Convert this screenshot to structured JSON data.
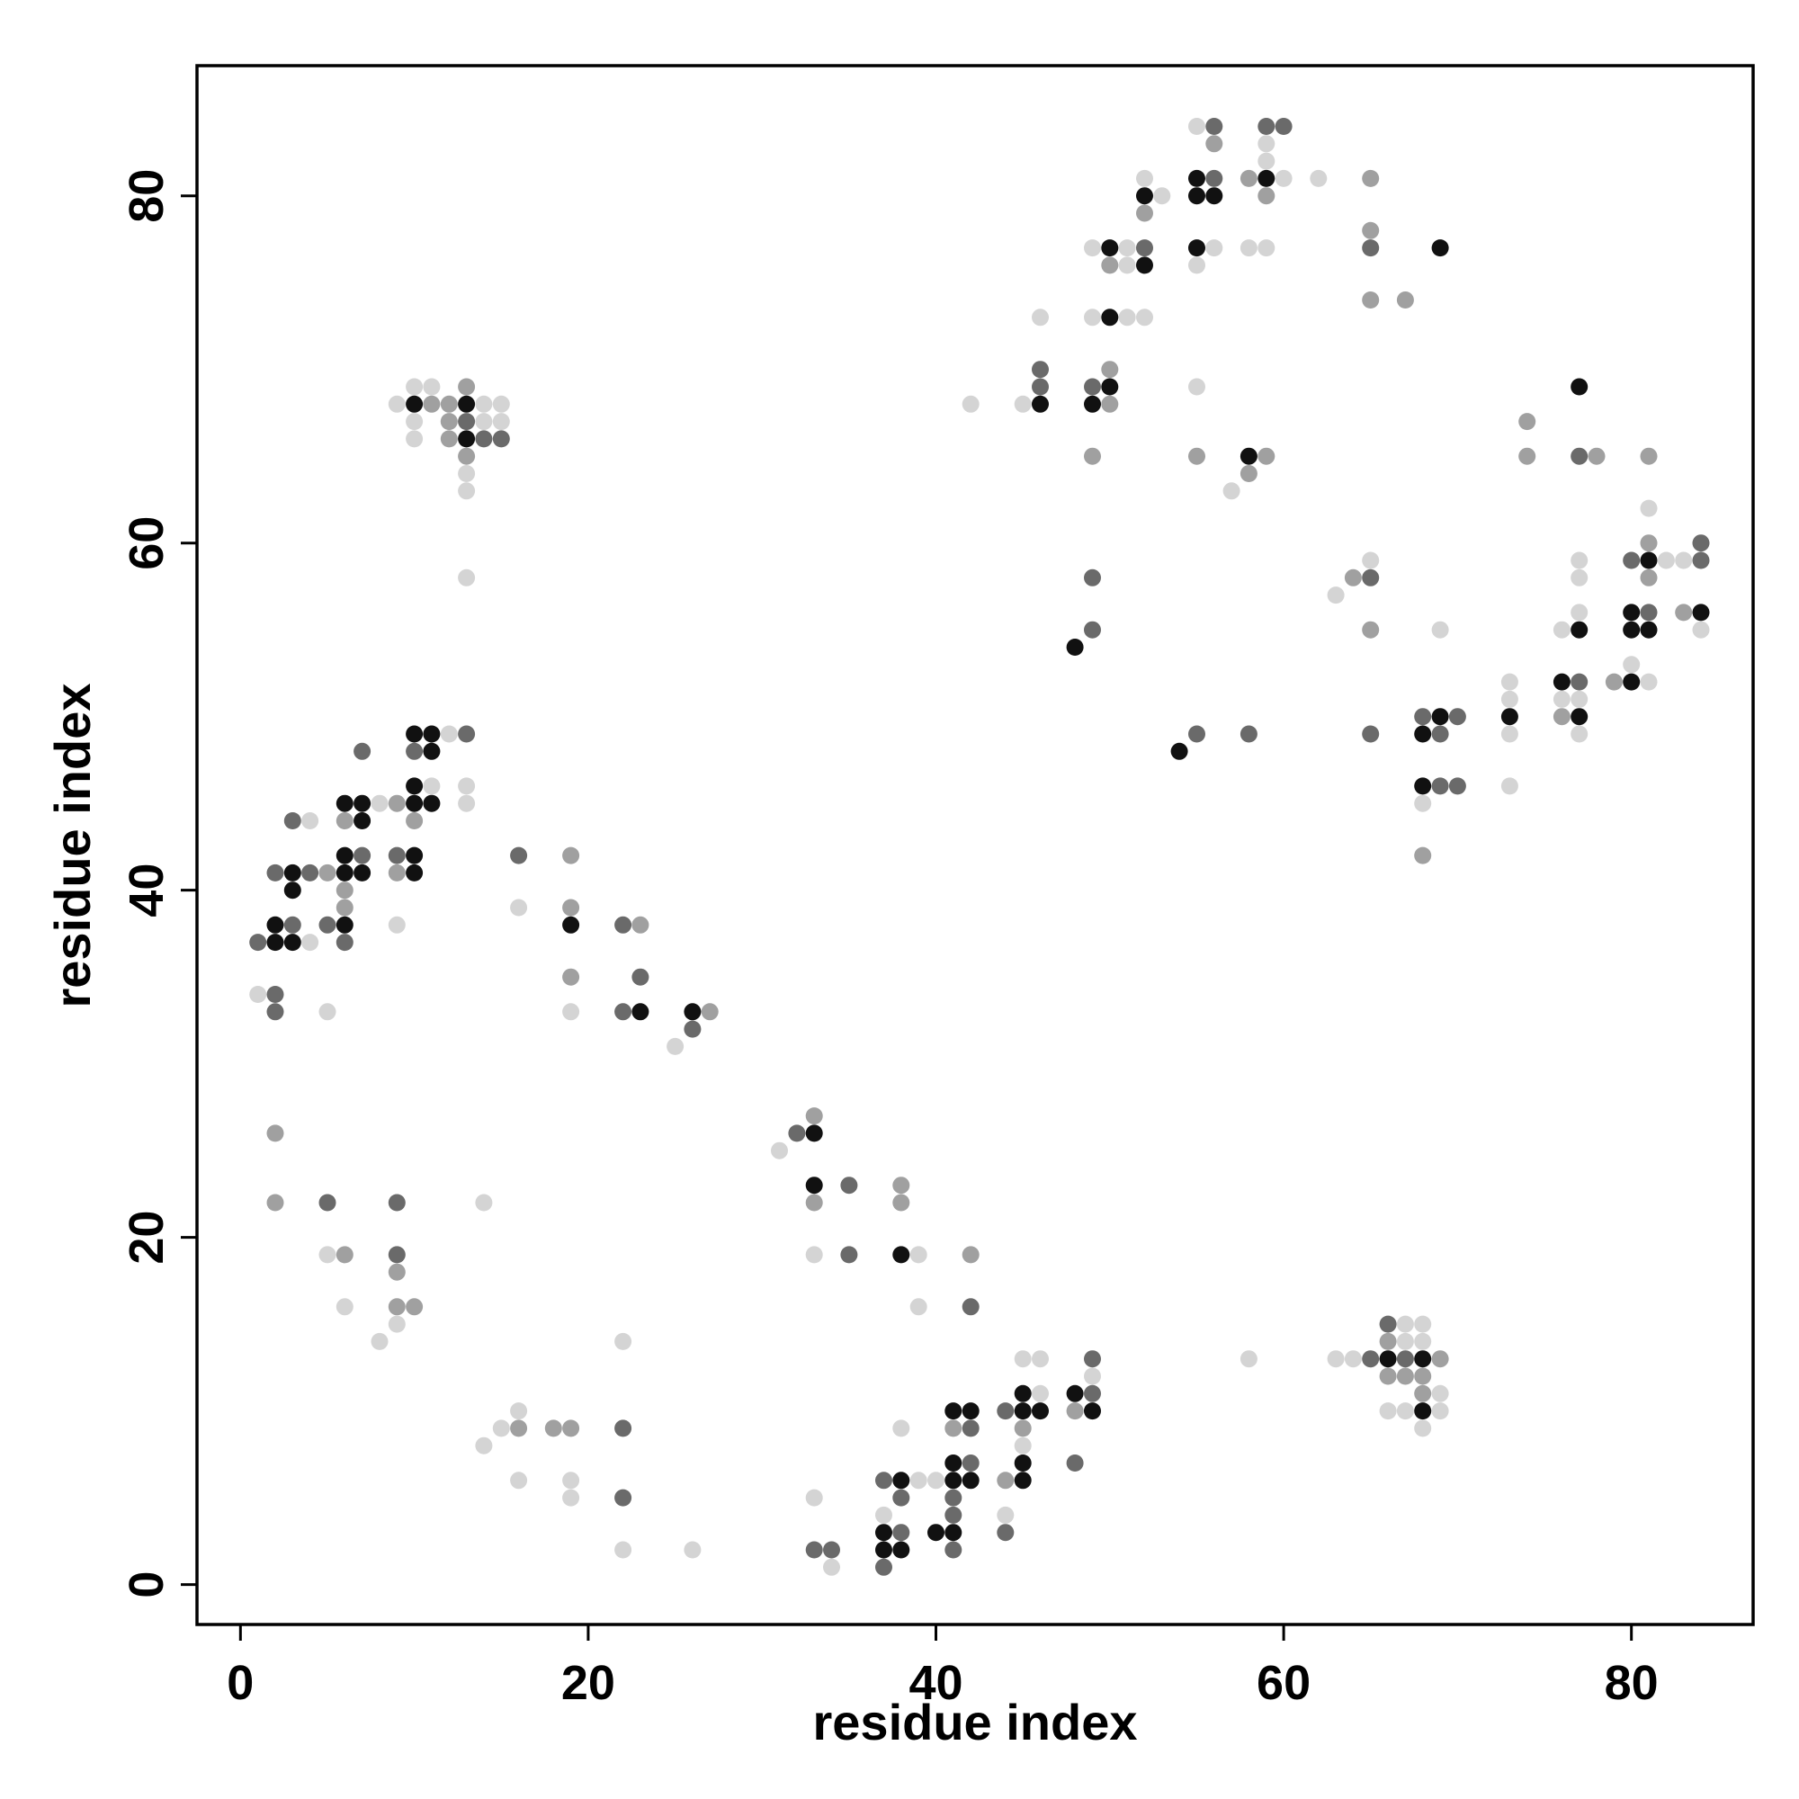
{
  "chart_data": {
    "type": "scatter",
    "title": "",
    "xlabel": "residue index",
    "ylabel": "residue index",
    "xlim": [
      -2.5,
      87
    ],
    "ylim": [
      -2.3,
      87.5
    ],
    "xticks": [
      0,
      20,
      40,
      60,
      80
    ],
    "yticks": [
      0,
      20,
      40,
      60,
      80
    ],
    "grid": false,
    "legend": "none",
    "marker_color_scale": "shade 1 = light gray, 4 = black",
    "shade_colors": [
      "#d4d4d4",
      "#a0a0a0",
      "#6a6a6a",
      "#111111"
    ],
    "points": [
      [
        1,
        37,
        3
      ],
      [
        1,
        34,
        1
      ],
      [
        2,
        38,
        4
      ],
      [
        2,
        37,
        4
      ],
      [
        2,
        34,
        3
      ],
      [
        2,
        33,
        3
      ],
      [
        2,
        41,
        3
      ],
      [
        2,
        26,
        2
      ],
      [
        2,
        22,
        2
      ],
      [
        3,
        41,
        4
      ],
      [
        3,
        40,
        4
      ],
      [
        3,
        38,
        3
      ],
      [
        3,
        37,
        4
      ],
      [
        3,
        44,
        3
      ],
      [
        4,
        44,
        1
      ],
      [
        4,
        41,
        3
      ],
      [
        4,
        37,
        1
      ],
      [
        5,
        41,
        2
      ],
      [
        5,
        38,
        3
      ],
      [
        5,
        33,
        1
      ],
      [
        5,
        22,
        3
      ],
      [
        5,
        19,
        1
      ],
      [
        6,
        45,
        4
      ],
      [
        6,
        44,
        2
      ],
      [
        6,
        42,
        4
      ],
      [
        6,
        41,
        4
      ],
      [
        6,
        40,
        2
      ],
      [
        6,
        39,
        2
      ],
      [
        6,
        38,
        4
      ],
      [
        6,
        37,
        3
      ],
      [
        6,
        19,
        2
      ],
      [
        6,
        16,
        1
      ],
      [
        7,
        48,
        3
      ],
      [
        7,
        45,
        4
      ],
      [
        7,
        44,
        4
      ],
      [
        7,
        42,
        3
      ],
      [
        7,
        41,
        4
      ],
      [
        8,
        45,
        1
      ],
      [
        8,
        14,
        1
      ],
      [
        9,
        68,
        1
      ],
      [
        9,
        45,
        2
      ],
      [
        9,
        42,
        3
      ],
      [
        9,
        41,
        2
      ],
      [
        9,
        38,
        1
      ],
      [
        9,
        22,
        3
      ],
      [
        9,
        19,
        3
      ],
      [
        9,
        18,
        2
      ],
      [
        9,
        16,
        2
      ],
      [
        9,
        15,
        1
      ],
      [
        10,
        69,
        1
      ],
      [
        10,
        68,
        4
      ],
      [
        10,
        67,
        1
      ],
      [
        10,
        66,
        1
      ],
      [
        10,
        49,
        4
      ],
      [
        10,
        48,
        3
      ],
      [
        10,
        46,
        4
      ],
      [
        10,
        45,
        4
      ],
      [
        10,
        44,
        2
      ],
      [
        10,
        42,
        4
      ],
      [
        10,
        41,
        4
      ],
      [
        10,
        16,
        2
      ],
      [
        11,
        69,
        1
      ],
      [
        11,
        68,
        2
      ],
      [
        11,
        49,
        4
      ],
      [
        11,
        48,
        4
      ],
      [
        11,
        46,
        1
      ],
      [
        11,
        45,
        4
      ],
      [
        12,
        68,
        2
      ],
      [
        12,
        67,
        2
      ],
      [
        12,
        66,
        2
      ],
      [
        12,
        49,
        1
      ],
      [
        13,
        69,
        2
      ],
      [
        13,
        68,
        4
      ],
      [
        13,
        67,
        3
      ],
      [
        13,
        66,
        4
      ],
      [
        13,
        65,
        2
      ],
      [
        13,
        64,
        1
      ],
      [
        13,
        63,
        1
      ],
      [
        13,
        58,
        1
      ],
      [
        13,
        49,
        3
      ],
      [
        13,
        46,
        1
      ],
      [
        13,
        45,
        1
      ],
      [
        14,
        68,
        1
      ],
      [
        14,
        67,
        1
      ],
      [
        14,
        66,
        3
      ],
      [
        14,
        22,
        1
      ],
      [
        14,
        8,
        1
      ],
      [
        15,
        68,
        1
      ],
      [
        15,
        67,
        1
      ],
      [
        15,
        66,
        3
      ],
      [
        15,
        9,
        1
      ],
      [
        16,
        42,
        3
      ],
      [
        16,
        39,
        1
      ],
      [
        16,
        10,
        1
      ],
      [
        16,
        9,
        2
      ],
      [
        16,
        6,
        1
      ],
      [
        18,
        9,
        2
      ],
      [
        19,
        42,
        2
      ],
      [
        19,
        39,
        2
      ],
      [
        19,
        38,
        4
      ],
      [
        19,
        35,
        2
      ],
      [
        19,
        33,
        1
      ],
      [
        19,
        9,
        2
      ],
      [
        19,
        6,
        1
      ],
      [
        19,
        5,
        1
      ],
      [
        22,
        38,
        3
      ],
      [
        22,
        33,
        3
      ],
      [
        22,
        14,
        1
      ],
      [
        22,
        9,
        3
      ],
      [
        22,
        5,
        3
      ],
      [
        22,
        2,
        1
      ],
      [
        23,
        38,
        2
      ],
      [
        23,
        35,
        3
      ],
      [
        23,
        33,
        4
      ],
      [
        25,
        31,
        1
      ],
      [
        26,
        33,
        4
      ],
      [
        26,
        32,
        3
      ],
      [
        26,
        2,
        1
      ],
      [
        27,
        33,
        2
      ],
      [
        31,
        25,
        1
      ],
      [
        32,
        26,
        3
      ],
      [
        33,
        27,
        2
      ],
      [
        33,
        26,
        4
      ],
      [
        33,
        23,
        4
      ],
      [
        33,
        22,
        2
      ],
      [
        33,
        19,
        1
      ],
      [
        33,
        5,
        1
      ],
      [
        33,
        2,
        3
      ],
      [
        34,
        2,
        3
      ],
      [
        34,
        1,
        1
      ],
      [
        35,
        23,
        3
      ],
      [
        35,
        19,
        3
      ],
      [
        37,
        6,
        3
      ],
      [
        37,
        4,
        1
      ],
      [
        37,
        3,
        4
      ],
      [
        37,
        2,
        4
      ],
      [
        37,
        1,
        3
      ],
      [
        38,
        23,
        2
      ],
      [
        38,
        22,
        2
      ],
      [
        38,
        19,
        4
      ],
      [
        38,
        9,
        1
      ],
      [
        38,
        6,
        4
      ],
      [
        38,
        5,
        3
      ],
      [
        38,
        3,
        3
      ],
      [
        38,
        2,
        4
      ],
      [
        39,
        19,
        1
      ],
      [
        39,
        16,
        1
      ],
      [
        39,
        6,
        1
      ],
      [
        40,
        6,
        1
      ],
      [
        40,
        3,
        4
      ],
      [
        41,
        10,
        4
      ],
      [
        41,
        9,
        2
      ],
      [
        41,
        7,
        4
      ],
      [
        41,
        6,
        4
      ],
      [
        41,
        5,
        3
      ],
      [
        41,
        4,
        3
      ],
      [
        41,
        3,
        4
      ],
      [
        41,
        2,
        3
      ],
      [
        42,
        19,
        2
      ],
      [
        42,
        16,
        3
      ],
      [
        42,
        10,
        4
      ],
      [
        42,
        9,
        3
      ],
      [
        42,
        7,
        3
      ],
      [
        42,
        6,
        4
      ],
      [
        44,
        10,
        3
      ],
      [
        44,
        6,
        2
      ],
      [
        44,
        4,
        1
      ],
      [
        44,
        3,
        3
      ],
      [
        45,
        13,
        1
      ],
      [
        45,
        11,
        4
      ],
      [
        45,
        10,
        4
      ],
      [
        45,
        9,
        2
      ],
      [
        45,
        8,
        1
      ],
      [
        45,
        7,
        4
      ],
      [
        45,
        6,
        4
      ],
      [
        46,
        73,
        1
      ],
      [
        46,
        70,
        3
      ],
      [
        46,
        69,
        3
      ],
      [
        46,
        68,
        4
      ],
      [
        46,
        13,
        1
      ],
      [
        46,
        11,
        1
      ],
      [
        46,
        10,
        4
      ],
      [
        48,
        54,
        4
      ],
      [
        48,
        11,
        4
      ],
      [
        48,
        10,
        2
      ],
      [
        48,
        7,
        3
      ],
      [
        49,
        77,
        1
      ],
      [
        49,
        73,
        1
      ],
      [
        49,
        69,
        3
      ],
      [
        49,
        68,
        4
      ],
      [
        49,
        65,
        2
      ],
      [
        49,
        58,
        3
      ],
      [
        49,
        55,
        3
      ],
      [
        49,
        13,
        3
      ],
      [
        49,
        12,
        1
      ],
      [
        49,
        11,
        3
      ],
      [
        49,
        10,
        4
      ],
      [
        50,
        77,
        4
      ],
      [
        50,
        76,
        2
      ],
      [
        50,
        73,
        4
      ],
      [
        50,
        70,
        2
      ],
      [
        50,
        69,
        4
      ],
      [
        50,
        68,
        2
      ],
      [
        51,
        77,
        1
      ],
      [
        51,
        76,
        1
      ],
      [
        51,
        73,
        1
      ],
      [
        52,
        81,
        1
      ],
      [
        52,
        80,
        4
      ],
      [
        52,
        79,
        2
      ],
      [
        52,
        77,
        3
      ],
      [
        52,
        76,
        4
      ],
      [
        52,
        73,
        1
      ],
      [
        53,
        80,
        1
      ],
      [
        42,
        68,
        1
      ],
      [
        45,
        68,
        1
      ],
      [
        54,
        48,
        4
      ],
      [
        55,
        84,
        1
      ],
      [
        55,
        81,
        4
      ],
      [
        55,
        80,
        4
      ],
      [
        55,
        77,
        4
      ],
      [
        55,
        76,
        1
      ],
      [
        55,
        69,
        1
      ],
      [
        55,
        65,
        2
      ],
      [
        55,
        49,
        3
      ],
      [
        56,
        84,
        3
      ],
      [
        56,
        83,
        2
      ],
      [
        56,
        81,
        3
      ],
      [
        56,
        80,
        4
      ],
      [
        56,
        77,
        1
      ],
      [
        57,
        63,
        1
      ],
      [
        58,
        81,
        2
      ],
      [
        58,
        77,
        1
      ],
      [
        58,
        65,
        4
      ],
      [
        58,
        64,
        2
      ],
      [
        58,
        49,
        3
      ],
      [
        58,
        13,
        1
      ],
      [
        59,
        84,
        3
      ],
      [
        59,
        83,
        1
      ],
      [
        59,
        82,
        1
      ],
      [
        59,
        81,
        4
      ],
      [
        59,
        80,
        2
      ],
      [
        59,
        77,
        1
      ],
      [
        59,
        65,
        2
      ],
      [
        60,
        84,
        3
      ],
      [
        60,
        81,
        1
      ],
      [
        62,
        81,
        1
      ],
      [
        63,
        57,
        1
      ],
      [
        63,
        13,
        1
      ],
      [
        64,
        58,
        2
      ],
      [
        64,
        13,
        1
      ],
      [
        65,
        81,
        2
      ],
      [
        65,
        78,
        2
      ],
      [
        65,
        77,
        3
      ],
      [
        65,
        74,
        2
      ],
      [
        65,
        59,
        1
      ],
      [
        65,
        58,
        3
      ],
      [
        65,
        55,
        2
      ],
      [
        65,
        49,
        3
      ],
      [
        65,
        13,
        3
      ],
      [
        66,
        15,
        3
      ],
      [
        66,
        14,
        2
      ],
      [
        66,
        13,
        4
      ],
      [
        66,
        12,
        2
      ],
      [
        66,
        10,
        1
      ],
      [
        67,
        74,
        2
      ],
      [
        67,
        15,
        1
      ],
      [
        67,
        14,
        1
      ],
      [
        67,
        13,
        3
      ],
      [
        67,
        12,
        2
      ],
      [
        67,
        10,
        1
      ],
      [
        68,
        50,
        3
      ],
      [
        68,
        49,
        4
      ],
      [
        68,
        46,
        4
      ],
      [
        68,
        45,
        1
      ],
      [
        68,
        42,
        2
      ],
      [
        68,
        15,
        1
      ],
      [
        68,
        14,
        1
      ],
      [
        68,
        13,
        4
      ],
      [
        68,
        12,
        2
      ],
      [
        68,
        11,
        2
      ],
      [
        68,
        10,
        4
      ],
      [
        68,
        9,
        1
      ],
      [
        69,
        77,
        4
      ],
      [
        69,
        55,
        1
      ],
      [
        69,
        50,
        4
      ],
      [
        69,
        49,
        3
      ],
      [
        69,
        46,
        3
      ],
      [
        69,
        13,
        2
      ],
      [
        69,
        11,
        1
      ],
      [
        69,
        10,
        1
      ],
      [
        70,
        50,
        3
      ],
      [
        70,
        46,
        3
      ],
      [
        73,
        52,
        1
      ],
      [
        73,
        51,
        1
      ],
      [
        73,
        50,
        4
      ],
      [
        73,
        49,
        1
      ],
      [
        73,
        46,
        1
      ],
      [
        74,
        67,
        2
      ],
      [
        74,
        65,
        2
      ],
      [
        76,
        55,
        1
      ],
      [
        76,
        52,
        4
      ],
      [
        76,
        51,
        1
      ],
      [
        76,
        50,
        2
      ],
      [
        77,
        69,
        4
      ],
      [
        77,
        65,
        3
      ],
      [
        77,
        59,
        1
      ],
      [
        77,
        58,
        1
      ],
      [
        77,
        56,
        1
      ],
      [
        77,
        55,
        4
      ],
      [
        77,
        52,
        3
      ],
      [
        77,
        51,
        1
      ],
      [
        77,
        50,
        4
      ],
      [
        77,
        49,
        1
      ],
      [
        78,
        65,
        2
      ],
      [
        79,
        52,
        2
      ],
      [
        80,
        59,
        3
      ],
      [
        80,
        56,
        4
      ],
      [
        80,
        55,
        4
      ],
      [
        80,
        53,
        1
      ],
      [
        80,
        52,
        4
      ],
      [
        81,
        65,
        2
      ],
      [
        81,
        62,
        1
      ],
      [
        81,
        60,
        2
      ],
      [
        81,
        59,
        4
      ],
      [
        81,
        58,
        2
      ],
      [
        81,
        56,
        3
      ],
      [
        81,
        55,
        4
      ],
      [
        81,
        52,
        1
      ],
      [
        82,
        59,
        1
      ],
      [
        83,
        59,
        1
      ],
      [
        83,
        56,
        2
      ],
      [
        84,
        60,
        3
      ],
      [
        84,
        59,
        3
      ],
      [
        84,
        56,
        4
      ],
      [
        84,
        55,
        1
      ]
    ]
  }
}
